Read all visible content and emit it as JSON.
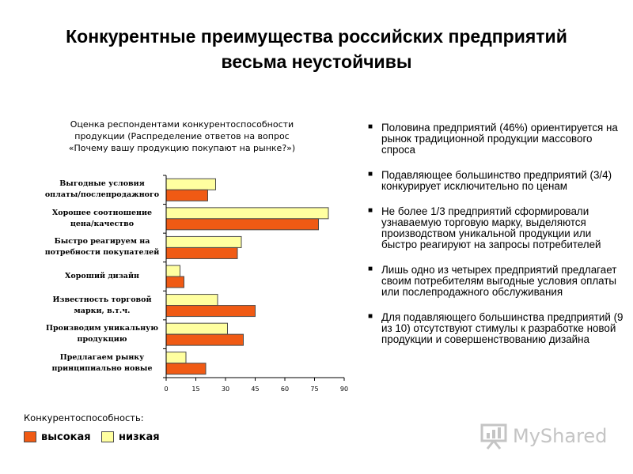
{
  "slide": {
    "title_line1": "Конкурентные преимущества российских предприятий",
    "title_line2": "весьма неустойчивы"
  },
  "chart_data": {
    "type": "bar",
    "orientation": "horizontal",
    "title_lines": [
      "Оценка респондентами конкурентоспособности",
      "продукции (Распределение ответов на вопрос",
      "«Почему вашу продукцию покупают на рынке?»)"
    ],
    "categories": [
      [
        "Выгодные условия",
        "оплаты/послепродажного"
      ],
      [
        "Хорошее соотношение",
        "цена/качество"
      ],
      [
        "Быстро реагируем на",
        "потребности покупателей"
      ],
      [
        "Хороший дизайн"
      ],
      [
        "Известность торговой",
        "марки, в.т.ч."
      ],
      [
        "Производим уникальную",
        "продукцию"
      ],
      [
        "Предлагаем рынку",
        "принципиально новые"
      ]
    ],
    "series": [
      {
        "name": "низкая",
        "color": "#ffffa0",
        "values": [
          25,
          82,
          38,
          7,
          26,
          31,
          10
        ]
      },
      {
        "name": "высокая",
        "color": "#f05a14",
        "values": [
          21,
          77,
          36,
          9,
          45,
          39,
          20
        ]
      }
    ],
    "xlim": [
      0,
      90
    ],
    "xticks": [
      "0",
      "15",
      "30",
      "45",
      "60",
      "75",
      "90"
    ],
    "legend": {
      "title": "Конкурентоспособность:",
      "position": "bottom-left",
      "order": [
        "высокая",
        "низкая"
      ]
    },
    "grid": false
  },
  "bullets": [
    "Половина предприятий (46%) ориентируется на рынок традиционной продукции массового спроса",
    "Подавляющее большинство предприятий (3/4) конкурирует исключительно по ценам",
    "Не более  1/3 предприятий сформировали узнаваемую торговую марку, выделяются производством уникальной продукции или быстро реагируют на запросы потребителей",
    "Лишь одно из четырех предприятий предлагает своим потребителям выгодные условия оплаты или послепродажного обслуживания",
    "Для подавляющего большинства предприятий (9 из 10) отсутствуют стимулы к разработке новой продукции и совершенствованию дизайна"
  ],
  "logo": {
    "text": "MyShared",
    "icon": "presentation-board-icon"
  }
}
